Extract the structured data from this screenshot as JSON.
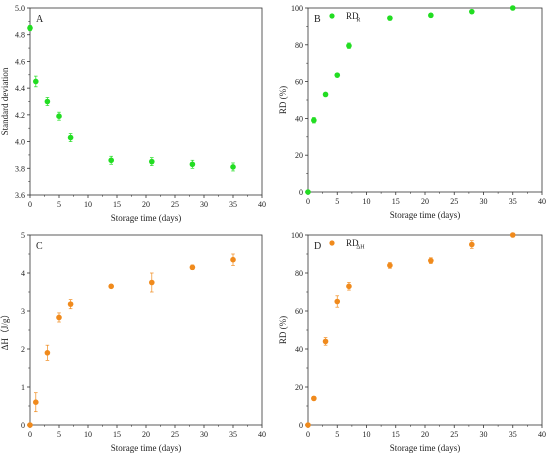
{
  "chart_data": [
    {
      "type": "scatter",
      "panel": "A",
      "title": "",
      "xlabel": "Storage time (days)",
      "ylabel": "Standard deviation",
      "xlim": [
        0,
        40
      ],
      "ylim": [
        3.6,
        5.0
      ],
      "xticks": [
        "0",
        "5",
        "10",
        "15",
        "20",
        "25",
        "30",
        "35",
        "40"
      ],
      "yticks": [
        "3.6",
        "3.8",
        "4.0",
        "4.2",
        "4.4",
        "4.6",
        "4.8",
        "5.0"
      ],
      "color": "#22dd22",
      "legend": null,
      "x": [
        0,
        1,
        3,
        5,
        7,
        14,
        21,
        28,
        35
      ],
      "y": [
        4.85,
        4.45,
        4.3,
        4.19,
        4.03,
        3.86,
        3.85,
        3.83,
        3.81
      ],
      "err": [
        0.02,
        0.04,
        0.03,
        0.03,
        0.03,
        0.03,
        0.03,
        0.03,
        0.03
      ]
    },
    {
      "type": "scatter",
      "panel": "B",
      "title": "",
      "xlabel": "Storage time (days)",
      "ylabel": "RD (%)",
      "xlim": [
        0,
        40
      ],
      "ylim": [
        0,
        100
      ],
      "xticks": [
        "0",
        "5",
        "10",
        "15",
        "20",
        "25",
        "30",
        "35",
        "40"
      ],
      "yticks": [
        "0",
        "20",
        "40",
        "60",
        "80",
        "100"
      ],
      "color": "#22dd22",
      "legend": {
        "main": "RD",
        "sub": "R"
      },
      "x": [
        0,
        1,
        3,
        5,
        7,
        14,
        21,
        28,
        35
      ],
      "y": [
        0,
        39,
        53,
        63.5,
        79.5,
        94.5,
        96,
        98,
        100
      ],
      "err": [
        0,
        1.5,
        1,
        1,
        1.5,
        1,
        1,
        1,
        1
      ]
    },
    {
      "type": "scatter",
      "panel": "C",
      "title": "",
      "xlabel": "Storage time (days)",
      "ylabel": "ΔH（J/g）",
      "xlim": [
        0,
        40
      ],
      "ylim": [
        0,
        5
      ],
      "xticks": [
        "0",
        "5",
        "10",
        "15",
        "20",
        "25",
        "30",
        "35",
        "40"
      ],
      "yticks": [
        "0",
        "1",
        "2",
        "3",
        "4",
        "5"
      ],
      "color": "#f08a1c",
      "legend": null,
      "x": [
        0,
        1,
        3,
        5,
        7,
        14,
        21,
        28,
        35
      ],
      "y": [
        0,
        0.6,
        1.9,
        2.83,
        3.18,
        3.65,
        3.75,
        4.15,
        4.35
      ],
      "err": [
        0,
        0.25,
        0.2,
        0.12,
        0.12,
        0.05,
        0.25,
        0.06,
        0.15
      ]
    },
    {
      "type": "scatter",
      "panel": "D",
      "title": "",
      "xlabel": "Storage time (days)",
      "ylabel": "RD (%)",
      "xlim": [
        0,
        40
      ],
      "ylim": [
        0,
        100
      ],
      "xticks": [
        "0",
        "5",
        "10",
        "15",
        "20",
        "25",
        "30",
        "35",
        "40"
      ],
      "yticks": [
        "0",
        "20",
        "40",
        "60",
        "80",
        "100"
      ],
      "color": "#f08a1c",
      "legend": {
        "main": "RD",
        "sub": "ΔH"
      },
      "x": [
        0,
        1,
        3,
        5,
        7,
        14,
        21,
        28,
        35
      ],
      "y": [
        0,
        14,
        44,
        65,
        73,
        84,
        86.5,
        95,
        100
      ],
      "err": [
        0,
        1,
        2,
        3,
        2,
        1.5,
        1.5,
        2,
        1
      ]
    }
  ]
}
